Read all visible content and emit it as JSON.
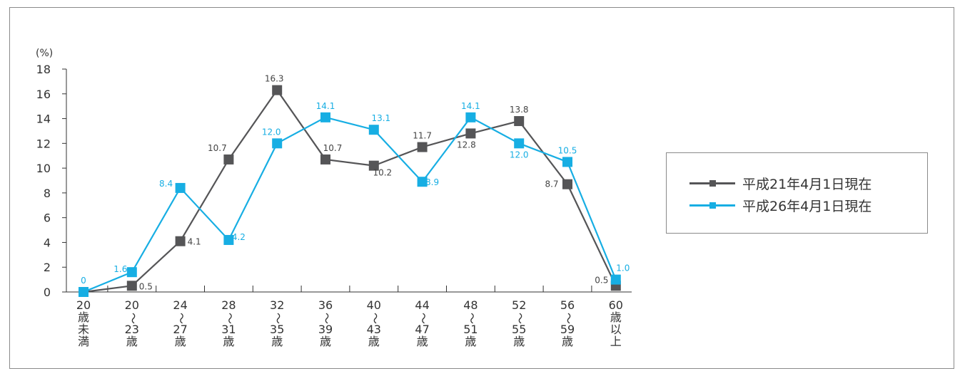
{
  "chart_data": {
    "type": "line",
    "title": "",
    "xlabel": "",
    "ylabel": "",
    "y_unit_label": "(%)",
    "ylim": [
      0,
      18
    ],
    "y_ticks": [
      "0",
      "2",
      "4",
      "6",
      "8",
      "10",
      "12",
      "14",
      "16",
      "18"
    ],
    "categories": [
      [
        "20",
        "歳",
        "未",
        "満"
      ],
      [
        "20",
        "〜",
        "23",
        "歳"
      ],
      [
        "24",
        "〜",
        "27",
        "歳"
      ],
      [
        "28",
        "〜",
        "31",
        "歳"
      ],
      [
        "32",
        "〜",
        "35",
        "歳"
      ],
      [
        "36",
        "〜",
        "39",
        "歳"
      ],
      [
        "40",
        "〜",
        "43",
        "歳"
      ],
      [
        "44",
        "〜",
        "47",
        "歳"
      ],
      [
        "48",
        "〜",
        "51",
        "歳"
      ],
      [
        "52",
        "〜",
        "55",
        "歳"
      ],
      [
        "56",
        "〜",
        "59",
        "歳"
      ],
      [
        "60",
        "歳",
        "以",
        "上"
      ]
    ],
    "series": [
      {
        "name": "平成21年4月1日現在",
        "color": "#555557",
        "values": [
          0,
          0.5,
          4.1,
          10.7,
          16.3,
          10.7,
          10.2,
          11.7,
          12.8,
          13.8,
          8.7,
          0.5
        ],
        "labels": [
          "",
          "0.5",
          "4.1",
          "10.7",
          "16.3",
          "10.7",
          "10.2",
          "11.7",
          "12.8",
          "13.8",
          "8.7",
          "0.5"
        ]
      },
      {
        "name": "平成26年4月1日現在",
        "color": "#17aee3",
        "values": [
          0,
          1.6,
          8.4,
          4.2,
          12.0,
          14.1,
          13.1,
          8.9,
          14.1,
          12.0,
          10.5,
          1.0
        ],
        "labels": [
          "0",
          "1.6",
          "8.4",
          "4.2",
          "12.0",
          "14.1",
          "13.1",
          "8.9",
          "14.1",
          "12.0",
          "10.5",
          "1.0"
        ]
      }
    ],
    "grid": false,
    "legend_position": "right"
  }
}
